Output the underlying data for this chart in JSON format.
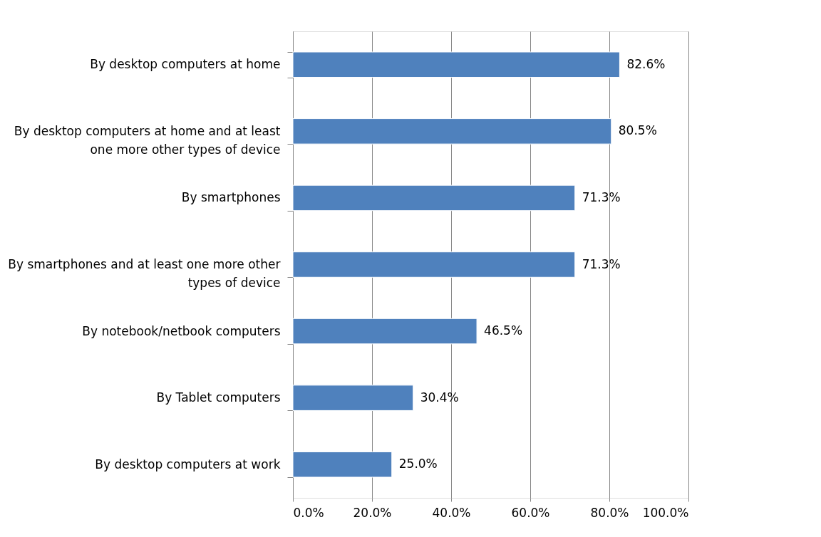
{
  "chart_data": {
    "type": "bar",
    "orientation": "horizontal",
    "categories": [
      "By desktop computers at home",
      "By desktop computers at home and at least one more other types of device",
      "By smartphones",
      "By smartphones and at least one more other types of device",
      "By notebook/netbook computers",
      "By Tablet computers",
      "By desktop computers at work"
    ],
    "values": [
      82.6,
      80.5,
      71.3,
      71.3,
      46.5,
      30.4,
      25.0
    ],
    "value_labels": [
      "82.6%",
      "80.5%",
      "71.3%",
      "71.3%",
      "46.5%",
      "30.4%",
      "25.0%"
    ],
    "color": "#4f81bd",
    "xlim": [
      0,
      100
    ],
    "xticks": [
      {
        "value": 0,
        "label": "0.0%"
      },
      {
        "value": 20,
        "label": "20.0%"
      },
      {
        "value": 40,
        "label": "40.0%"
      },
      {
        "value": 60,
        "label": "60.0%"
      },
      {
        "value": 80,
        "label": "80.0%"
      },
      {
        "value": 100,
        "label": "100.0%"
      }
    ],
    "grid": "x"
  }
}
